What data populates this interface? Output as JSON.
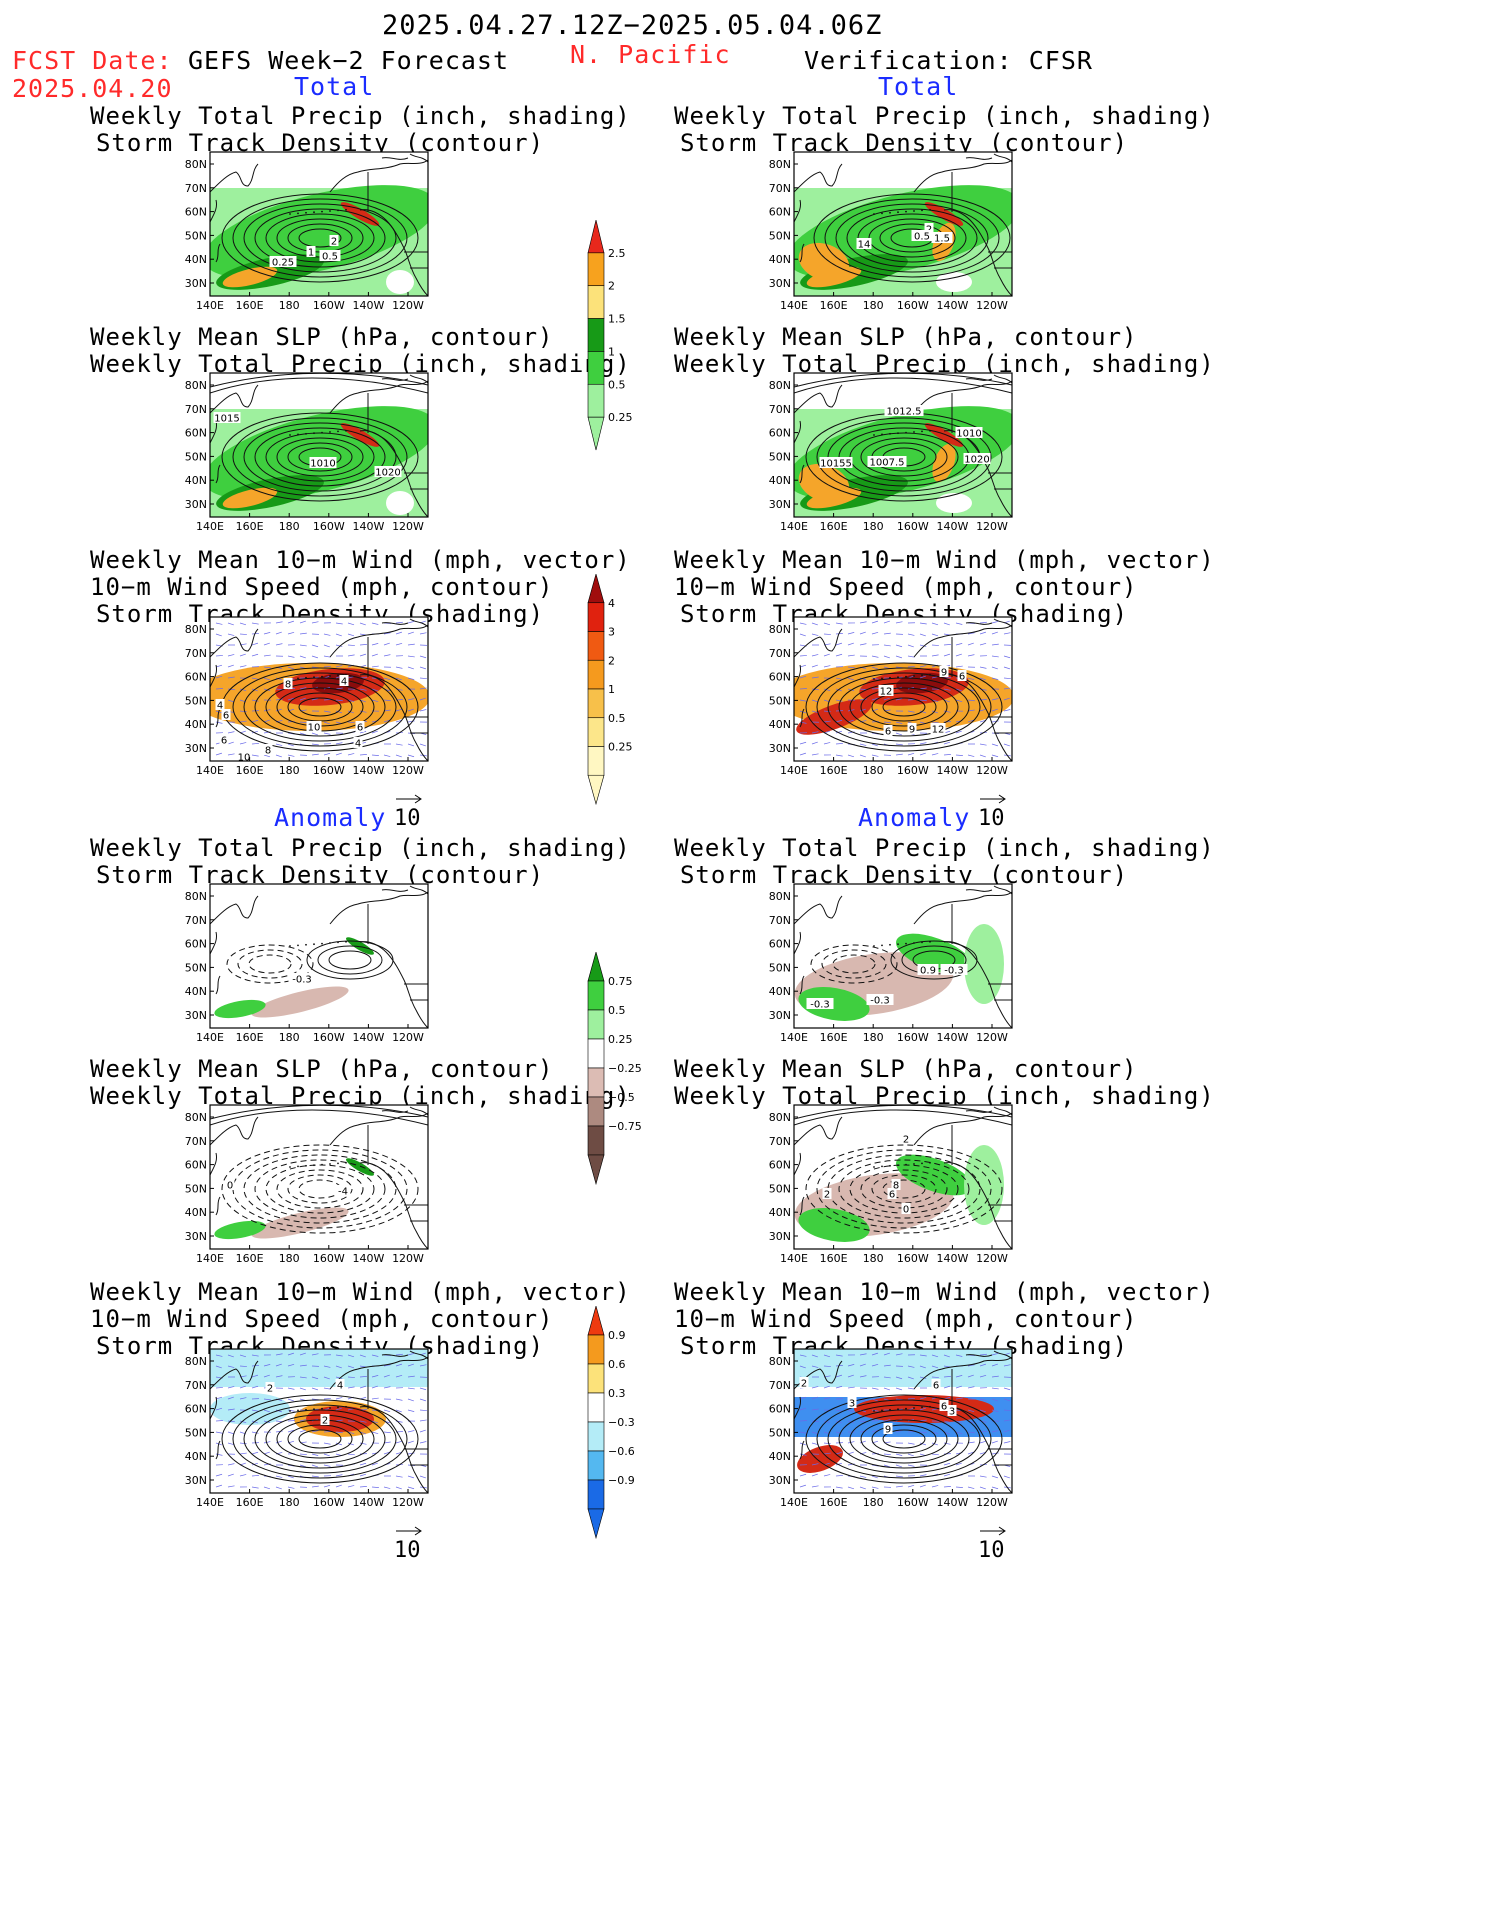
{
  "header": {
    "date_range": "2025.04.27.12Z−2025.05.04.06Z",
    "fcst_label": "FCST Date:",
    "fcst_date": "2025.04.20",
    "left_title": "GEFS Week−2 Forecast",
    "region": "N. Pacific",
    "right_title": "Verification: CFSR"
  },
  "sections": {
    "total": "Total",
    "anomaly": "Anomaly"
  },
  "panel_titles": {
    "precip_storm": [
      "Weekly Total Precip (inch, shading)",
      "Storm Track Density (contour)"
    ],
    "slp_precip": [
      "Weekly Mean SLP (hPa, contour)",
      "Weekly Total Precip (inch, shading)"
    ],
    "wind_storm": [
      "Weekly Mean 10−m Wind (mph, vector)",
      "10−m Wind Speed (mph, contour)",
      "Storm Track Density (shading)"
    ]
  },
  "axes": {
    "lat_labels": [
      "80N",
      "70N",
      "60N",
      "50N",
      "40N",
      "30N"
    ],
    "lon_labels": [
      "140E",
      "160E",
      "180",
      "160W",
      "140W",
      "120W"
    ]
  },
  "vector_ref": "10",
  "contour_labels": {
    "fc_total_precip": [
      "2",
      "1",
      "0.5",
      "0.25"
    ],
    "ver_total_precip": [
      "2",
      "1.5",
      "0.5",
      "14"
    ],
    "fc_total_slp": [
      "1015",
      "1010",
      "1020"
    ],
    "ver_total_slp": [
      "1012.5",
      "1010",
      "10155",
      "1007.5",
      "1020"
    ],
    "fc_total_wind": [
      "8",
      "4",
      "4",
      "6",
      "10",
      "6",
      "6",
      "8",
      "4",
      "10"
    ],
    "ver_total_wind": [
      "9",
      "6",
      "12",
      "6",
      "9",
      "12"
    ],
    "fc_anom_precip": [
      "-0.3"
    ],
    "ver_anom_precip": [
      "0.9",
      "-0.3",
      "-0.3",
      "-0.3"
    ],
    "fc_anom_slp": [
      "0",
      "-4"
    ],
    "ver_anom_slp": [
      "2",
      "2",
      "6",
      "0",
      "8"
    ],
    "fc_anom_wind": [
      "2",
      "4",
      "2"
    ],
    "ver_anom_wind": [
      "2",
      "6",
      "3",
      "6",
      "3",
      "9"
    ]
  },
  "colorbars": {
    "total_precip": {
      "labels": [
        "2.5",
        "2",
        "1.5",
        "1",
        "0.5",
        "0.25"
      ],
      "colors": [
        "#e8281c",
        "#f7a21e",
        "#fce27a",
        "#179a17",
        "#3fcf3f",
        "#9ef09e"
      ]
    },
    "total_storm": {
      "labels": [
        "4",
        "3",
        "2",
        "1",
        "0.5",
        "0.25"
      ],
      "colors": [
        "#a00d0d",
        "#e0220f",
        "#f05a12",
        "#f59a1e",
        "#f7c04a",
        "#fce68a",
        "#fff7c2"
      ]
    },
    "anom_precip": {
      "labels": [
        "0.75",
        "0.5",
        "0.25",
        "−0.25",
        "−0.5",
        "−0.75"
      ],
      "colors": [
        "#179a17",
        "#3fcf3f",
        "#9ef09e",
        "#ffffff",
        "#dcbcb4",
        "#ad8a80",
        "#6e4c44"
      ]
    },
    "anom_storm": {
      "labels": [
        "0.9",
        "0.6",
        "0.3",
        "−0.3",
        "−0.6",
        "−0.9"
      ],
      "colors": [
        "#ee3a10",
        "#f49a1e",
        "#fce27a",
        "#ffffff",
        "#b4ecf7",
        "#54b8f0",
        "#1a6ae6"
      ]
    }
  },
  "colors": {
    "precip_light": "#9ef09e",
    "precip_mid": "#3fcf3f",
    "precip_dark": "#179a17",
    "dry_anom": "#d8b8b0",
    "storm_orange": "#f5a52a",
    "storm_red": "#d42a16",
    "storm_dark": "#8b0c0c",
    "vector_blue": "#6a6ae8",
    "cool": "#b4ecf7",
    "blue": "#3f8ff0"
  }
}
